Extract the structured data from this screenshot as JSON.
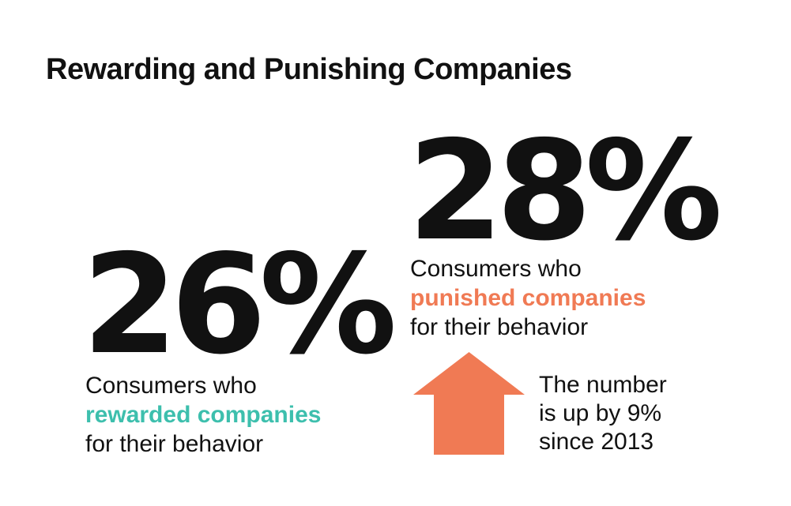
{
  "title": "Rewarding and Punishing Companies",
  "colors": {
    "text": "#111111",
    "rewarded": "#3dbfad",
    "punished": "#f07a54"
  },
  "rewarded": {
    "stat": "26%",
    "line1": "Consumers who",
    "highlight": "rewarded companies",
    "line3": "for their behavior"
  },
  "punished": {
    "stat": "28%",
    "line1": "Consumers who",
    "highlight": "punished companies",
    "line3": "for their behavior"
  },
  "increase": {
    "icon": "up-arrow-icon",
    "line1": "The number",
    "line2": "is up by 9%",
    "line3": "since 2013"
  }
}
